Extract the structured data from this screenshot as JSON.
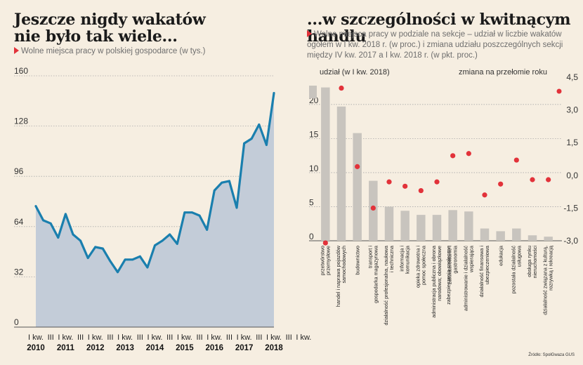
{
  "left": {
    "title_line1": "Jeszcze nigdy wakatów",
    "title_line2": "nie było tak wiele...",
    "subtitle": "Wolne miejsca pracy w polskiej gospodarce (w tys.)"
  },
  "right": {
    "title": "...w szczególności w kwitnącym handlu",
    "subtitle": "Wolne miejsca pracy w podziale na sekcje – udział w liczbie wakatów ogółem w I kw. 2018 r. (w proc.) i zmiana udziału poszczególnych sekcji między IV kw. 2017 a I kw. 2018 r. (w pkt. proc.)",
    "left_axis_label": "udział (w I kw. 2018)",
    "right_axis_label": "zmiana na przełomie roku"
  },
  "source": "Źródło: SpołGwaza GUS",
  "colors": {
    "line": "#1a7fae",
    "area": "#c3ccd8",
    "bar": "#c8c4be",
    "dot": "#e2323a",
    "accent": "#e2323a",
    "background": "#f6eee1"
  },
  "chart_data": [
    {
      "type": "area",
      "y_ticks": [
        0,
        32,
        64,
        96,
        128,
        160
      ],
      "ylim": [
        0,
        160
      ],
      "x_quarter_labels": [
        "I kw.",
        "III",
        "I kw.",
        "III",
        "I kw.",
        "III",
        "I kw.",
        "III",
        "I kw.",
        "III",
        "I kw.",
        "III",
        "I kw.",
        "III",
        "I kw.",
        "III",
        "I kw.",
        "III",
        "I kw."
      ],
      "x_year_labels": [
        "2010",
        "2011",
        "2012",
        "2013",
        "2014",
        "2015",
        "2016",
        "2017",
        "2018"
      ],
      "values": [
        77,
        68,
        66,
        57,
        72,
        59,
        55,
        44,
        51,
        50,
        42,
        35,
        43,
        43,
        45,
        38,
        52,
        55,
        59,
        53,
        73,
        73,
        71,
        62,
        87,
        92,
        93,
        76,
        117,
        120,
        129,
        116,
        149
      ]
    },
    {
      "type": "bar",
      "categories": [
        "przetwórstwo przemysłowe",
        "handel i naprawa pojazdów samochodowych",
        "budownictwo",
        "transport i gospodarka magazynowa",
        "działalność profesjonalna, naukowa i techniczna",
        "informacja i komunikacja",
        "opieka zdrowotna i pomoc społeczna",
        "administracja publiczna i obrona narodowa; obowiązkowe zabezpieczenia społeczne",
        "zakwaterowanie i gastronomia",
        "administrowanie i działalność wspierająca",
        "działalność finansowa i ubezpieczeniowa",
        "edukacja",
        "pozostała działalność usługowa",
        "obsługa rynku nieruchomości",
        "działalność związana z kulturą, rozrywką i rekreacją"
      ],
      "series": [
        {
          "name": "udział (w I kw. 2018)",
          "axis": "left",
          "values": [
            22.5,
            19.7,
            15.8,
            8.8,
            5.0,
            4.4,
            3.8,
            3.8,
            4.5,
            4.3,
            1.8,
            1.4,
            1.8,
            0.8,
            0.6
          ]
        },
        {
          "name": "zmiana na przełomie roku",
          "axis": "right",
          "values": [
            -3.1,
            4.0,
            0.4,
            -1.5,
            -0.3,
            -0.5,
            -0.7,
            -0.3,
            0.9,
            1.0,
            -0.9,
            -0.4,
            0.7,
            -0.2,
            -0.2
          ]
        }
      ],
      "left_axis_ticks": [
        0,
        5,
        10,
        15,
        20
      ],
      "left_ylim": [
        0,
        24
      ],
      "right_axis_ticks": [
        "4,5",
        "3,0",
        "1,5",
        "0,0",
        "-1,5",
        "-3,0"
      ],
      "right_ylim": [
        -3.0,
        4.5
      ]
    }
  ]
}
